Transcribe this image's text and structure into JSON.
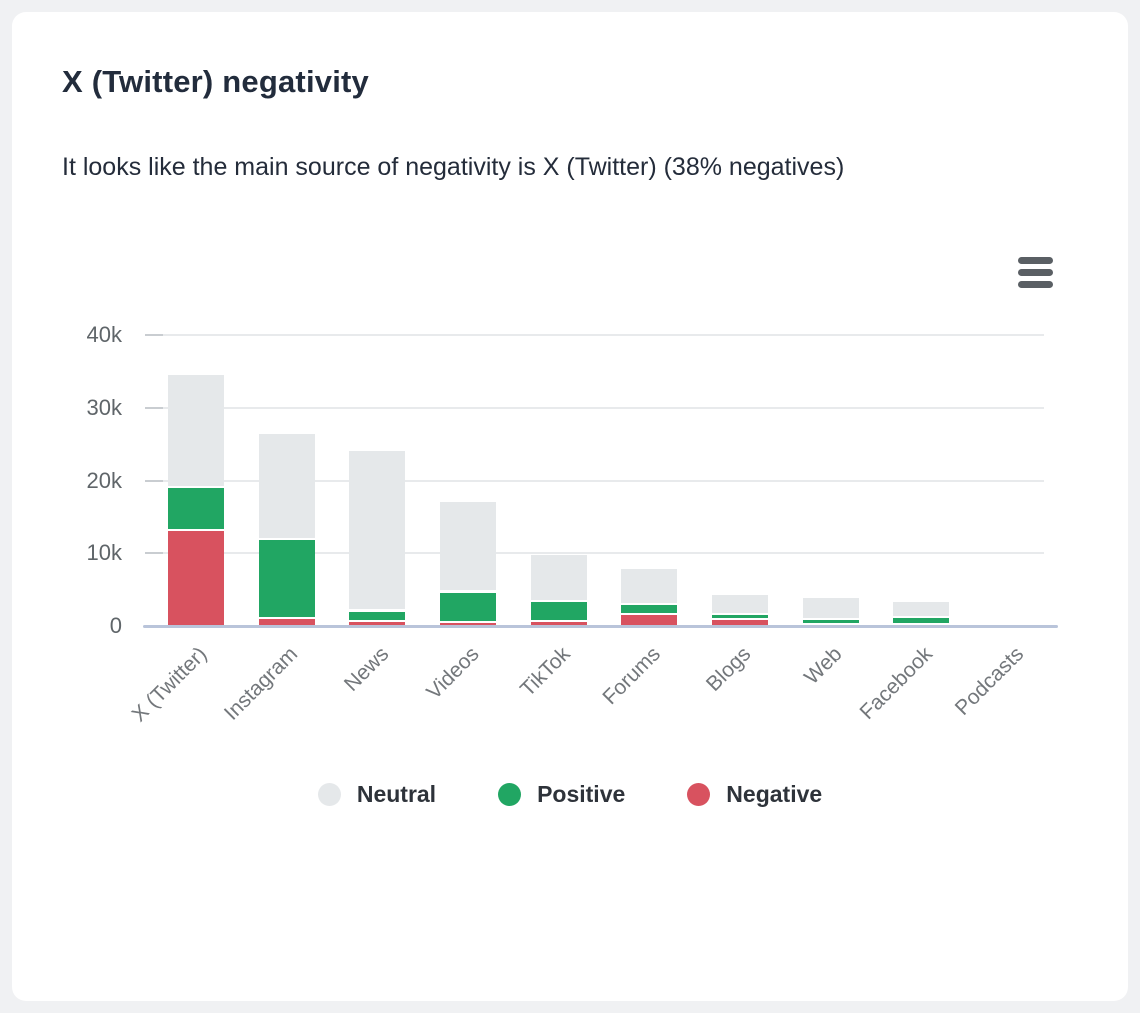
{
  "header": {
    "title": "X (Twitter) negativity",
    "subtitle": "It looks like the main source of negativity is X (Twitter) (38% negatives)"
  },
  "toolbar": {
    "menu_icon": "hamburger-menu"
  },
  "colors": {
    "card_background": "#ffffff",
    "page_background": "#f0f1f3",
    "neutral": "#e5e8ea",
    "positive": "#21a663",
    "negative": "#d8525f",
    "gridline": "#e8eaec",
    "baseline": "#b9c4da",
    "axis_text": "#5f6569",
    "menu_icon": "#5a5f64"
  },
  "chart_data": {
    "type": "bar",
    "stacked": true,
    "title": "X (Twitter) negativity",
    "xlabel": "",
    "ylabel": "",
    "ylim": [
      0,
      40000
    ],
    "grid": "horizontal",
    "legend_position": "bottom",
    "categories": [
      "X (Twitter)",
      "Instagram",
      "News",
      "Videos",
      "TikTok",
      "Forums",
      "Blogs",
      "Web",
      "Facebook",
      "Podcasts"
    ],
    "yticks": [
      {
        "value": 0,
        "label": "0"
      },
      {
        "value": 10000,
        "label": "10k"
      },
      {
        "value": 20000,
        "label": "20k"
      },
      {
        "value": 30000,
        "label": "30k"
      },
      {
        "value": 40000,
        "label": "40k"
      }
    ],
    "series": [
      {
        "name": "Neutral",
        "color": "#e5e8ea",
        "values": [
          15500,
          14600,
          22000,
          12400,
          6500,
          4900,
          2700,
          3100,
          2200,
          0
        ]
      },
      {
        "name": "Positive",
        "color": "#21a663",
        "values": [
          6000,
          10800,
          1500,
          4200,
          2800,
          1400,
          700,
          700,
          1000,
          0
        ]
      },
      {
        "name": "Negative",
        "color": "#d8525f",
        "values": [
          13000,
          1000,
          500,
          400,
          500,
          1500,
          800,
          100,
          100,
          0
        ]
      }
    ],
    "stack_bottom_to_top": [
      "Negative",
      "Positive",
      "Neutral"
    ],
    "totals": [
      34500,
      26400,
      24000,
      17000,
      9800,
      7800,
      4200,
      3900,
      3300,
      0
    ]
  }
}
